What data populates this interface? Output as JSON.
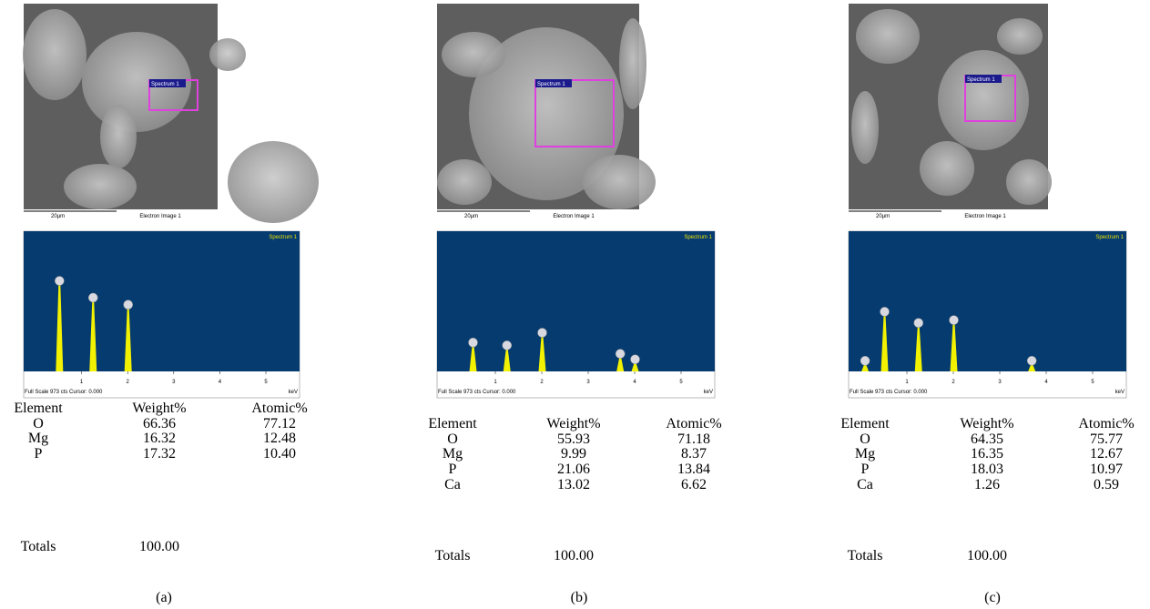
{
  "panels": [
    {
      "image": {
        "roi_label": "Spectrum 1",
        "scale_bar": "20µm",
        "caption": "Electron Image 1"
      },
      "spectrum": {
        "title": "Spectrum 1",
        "ticks": [
          "1",
          "2",
          "3",
          "4",
          "5"
        ],
        "footer": "Full Scale 973 cts Cursor: 0.000",
        "unit": "keV"
      },
      "table": {
        "header": [
          "Element",
          "Weight%",
          "Atomic%"
        ],
        "rows": [
          [
            "O",
            "66.36",
            "77.12"
          ],
          [
            "Mg",
            "16.32",
            "12.48"
          ],
          [
            "P",
            "17.32",
            "10.40"
          ]
        ],
        "totals": [
          "Totals",
          "100.00"
        ]
      },
      "label": "(a)"
    },
    {
      "image": {
        "roi_label": "Spectrum 1",
        "scale_bar": "20µm",
        "caption": "Electron Image 1"
      },
      "spectrum": {
        "title": "Spectrum 1",
        "ticks": [
          "1",
          "2",
          "3",
          "4",
          "5"
        ],
        "footer": "Full Scale 973 cts Cursor: 0.000",
        "unit": "keV"
      },
      "table": {
        "header": [
          "Element",
          "Weight%",
          "Atomic%"
        ],
        "rows": [
          [
            "O",
            "55.93",
            "71.18"
          ],
          [
            "Mg",
            "9.99",
            "8.37"
          ],
          [
            "P",
            "21.06",
            "13.84"
          ],
          [
            "Ca",
            "13.02",
            "6.62"
          ]
        ],
        "totals": [
          "Totals",
          "100.00"
        ]
      },
      "label": "(b)"
    },
    {
      "image": {
        "roi_label": "Spectrum 1",
        "scale_bar": "20µm",
        "caption": "Electron Image 1"
      },
      "spectrum": {
        "title": "Spectrum 1",
        "ticks": [
          "1",
          "2",
          "3",
          "4",
          "5"
        ],
        "footer": "Full Scale 973 cts Cursor: 0.000",
        "unit": "keV"
      },
      "table": {
        "header": [
          "Element",
          "Weight%",
          "Atomic%"
        ],
        "rows": [
          [
            "O",
            "64.35",
            "75.77"
          ],
          [
            "Mg",
            "16.35",
            "12.67"
          ],
          [
            "P",
            "18.03",
            "10.97"
          ],
          [
            "Ca",
            "1.26",
            "0.59"
          ]
        ],
        "totals": [
          "Totals",
          "100.00"
        ]
      },
      "label": "(c)"
    }
  ]
}
